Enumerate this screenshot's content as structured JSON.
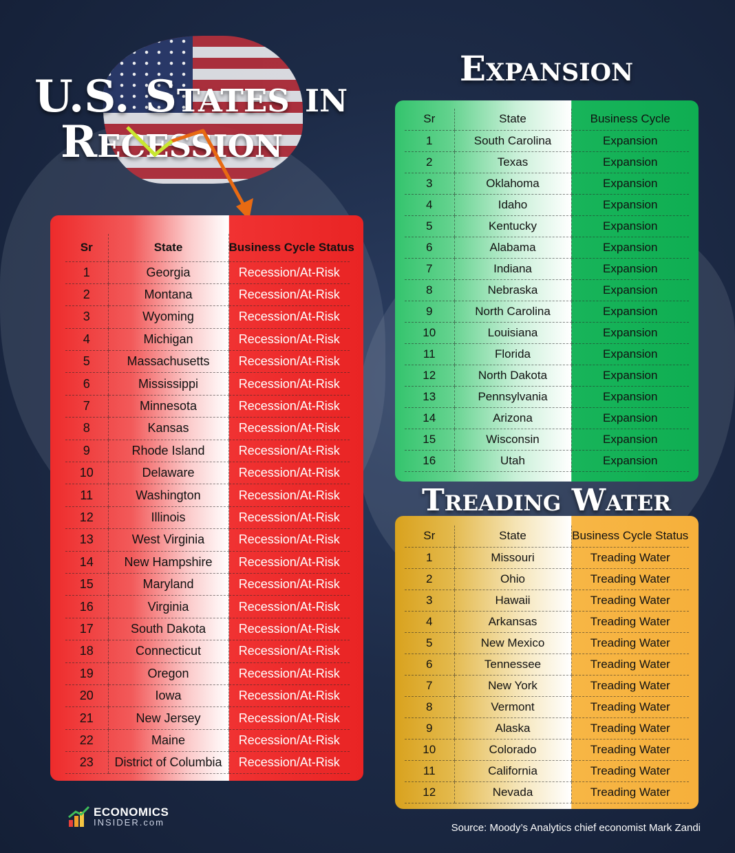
{
  "title": {
    "line1": "U.S. States in",
    "line2": "Recession"
  },
  "recession": {
    "headers": [
      "Sr",
      "State",
      "Business Cycle Status"
    ],
    "rows": [
      [
        "1",
        "Georgia",
        "Recession/At-Risk"
      ],
      [
        "2",
        "Montana",
        "Recession/At-Risk"
      ],
      [
        "3",
        "Wyoming",
        "Recession/At-Risk"
      ],
      [
        "4",
        "Michigan",
        "Recession/At-Risk"
      ],
      [
        "5",
        "Massachusetts",
        "Recession/At-Risk"
      ],
      [
        "6",
        "Mississippi",
        "Recession/At-Risk"
      ],
      [
        "7",
        "Minnesota",
        "Recession/At-Risk"
      ],
      [
        "8",
        "Kansas",
        "Recession/At-Risk"
      ],
      [
        "9",
        "Rhode Island",
        "Recession/At-Risk"
      ],
      [
        "10",
        "Delaware",
        "Recession/At-Risk"
      ],
      [
        "11",
        "Washington",
        "Recession/At-Risk"
      ],
      [
        "12",
        "Illinois",
        "Recession/At-Risk"
      ],
      [
        "13",
        "West Virginia",
        "Recession/At-Risk"
      ],
      [
        "14",
        "New Hampshire",
        "Recession/At-Risk"
      ],
      [
        "15",
        "Maryland",
        "Recession/At-Risk"
      ],
      [
        "16",
        "Virginia",
        "Recession/At-Risk"
      ],
      [
        "17",
        "South Dakota",
        "Recession/At-Risk"
      ],
      [
        "18",
        "Connecticut",
        "Recession/At-Risk"
      ],
      [
        "19",
        "Oregon",
        "Recession/At-Risk"
      ],
      [
        "20",
        "Iowa",
        "Recession/At-Risk"
      ],
      [
        "21",
        "New Jersey",
        "Recession/At-Risk"
      ],
      [
        "22",
        "Maine",
        "Recession/At-Risk"
      ],
      [
        "23",
        "District of Columbia",
        "Recession/At-Risk"
      ]
    ]
  },
  "expansion": {
    "heading": "Expansion",
    "headers": [
      "Sr",
      "State",
      "Business Cycle"
    ],
    "rows": [
      [
        "1",
        "South Carolina",
        "Expansion"
      ],
      [
        "2",
        "Texas",
        "Expansion"
      ],
      [
        "3",
        "Oklahoma",
        "Expansion"
      ],
      [
        "4",
        "Idaho",
        "Expansion"
      ],
      [
        "5",
        "Kentucky",
        "Expansion"
      ],
      [
        "6",
        "Alabama",
        "Expansion"
      ],
      [
        "7",
        "Indiana",
        "Expansion"
      ],
      [
        "8",
        "Nebraska",
        "Expansion"
      ],
      [
        "9",
        "North Carolina",
        "Expansion"
      ],
      [
        "10",
        "Louisiana",
        "Expansion"
      ],
      [
        "11",
        "Florida",
        "Expansion"
      ],
      [
        "12",
        "North Dakota",
        "Expansion"
      ],
      [
        "13",
        "Pennsylvania",
        "Expansion"
      ],
      [
        "14",
        "Arizona",
        "Expansion"
      ],
      [
        "15",
        "Wisconsin",
        "Expansion"
      ],
      [
        "16",
        "Utah",
        "Expansion"
      ]
    ]
  },
  "treading": {
    "heading": "Treading Water",
    "headers": [
      "Sr",
      "State",
      "Business Cycle Status"
    ],
    "rows": [
      [
        "1",
        "Missouri",
        "Treading Water"
      ],
      [
        "2",
        "Ohio",
        "Treading Water"
      ],
      [
        "3",
        "Hawaii",
        "Treading Water"
      ],
      [
        "4",
        "Arkansas",
        "Treading Water"
      ],
      [
        "5",
        "New Mexico",
        "Treading Water"
      ],
      [
        "6",
        "Tennessee",
        "Treading Water"
      ],
      [
        "7",
        "New York",
        "Treading Water"
      ],
      [
        "8",
        "Vermont",
        "Treading Water"
      ],
      [
        "9",
        "Alaska",
        "Treading Water"
      ],
      [
        "10",
        "Colorado",
        "Treading Water"
      ],
      [
        "11",
        "California",
        "Treading Water"
      ],
      [
        "12",
        "Nevada",
        "Treading Water"
      ]
    ]
  },
  "logo": {
    "name": "ECONOMICS",
    "sub": "INSIDER.com",
    "icon": "rising-bars-chart-icon"
  },
  "source": "Source: Moody’s Analytics chief economist Mark Zandi",
  "colors": {
    "recession": "#e92424",
    "expansion": "#0fae52",
    "treading": "#f6b03b",
    "background": "#1d2b47"
  }
}
